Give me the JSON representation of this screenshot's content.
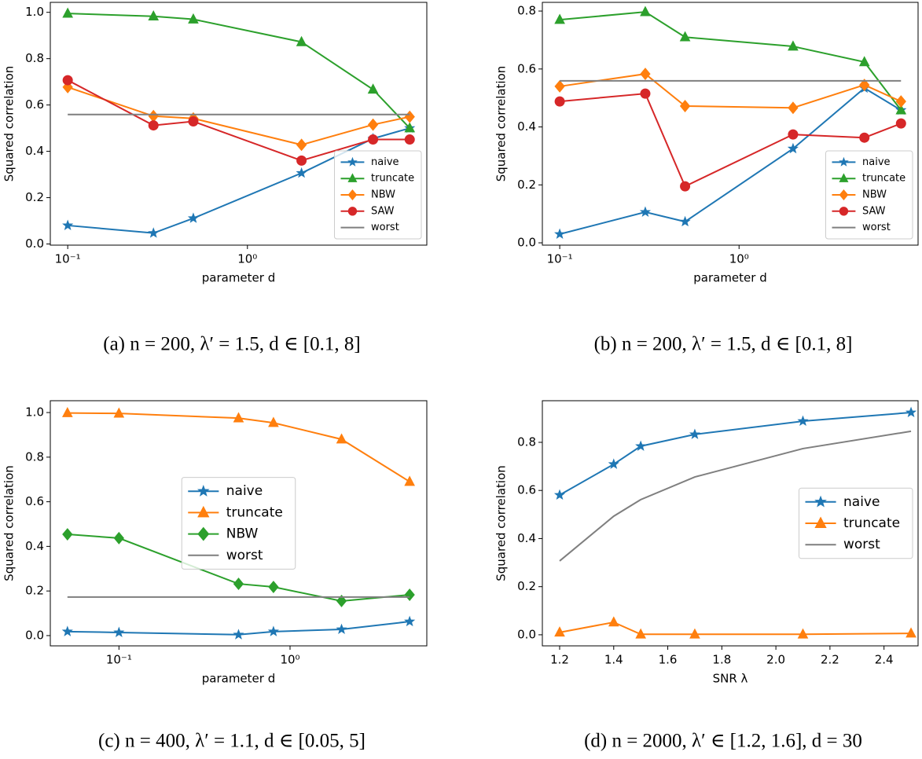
{
  "chart_data": [
    {
      "type": "line",
      "xscale": "log",
      "ylabel": "Squared correlation",
      "xlabel": "parameter d",
      "caption": "(a) n = 200, λ′ = 1.5, d ∈ [0.1, 8]",
      "x": [
        0.1,
        0.3,
        0.5,
        2,
        5,
        8
      ],
      "xlim": [
        0.08,
        9.96
      ],
      "ylim": [
        -0.005,
        1.043
      ],
      "xticks": [
        {
          "value": 0.1,
          "label": "10⁻¹"
        },
        {
          "value": 1,
          "label": "10⁰"
        }
      ],
      "yticks": [
        {
          "value": 0,
          "label": "0.0"
        },
        0.2,
        0.4,
        0.6,
        0.8,
        {
          "value": 1,
          "label": "1.0"
        }
      ],
      "legend_loc": "lower right",
      "series": [
        {
          "name": "naive",
          "color": "#1f77b4",
          "marker": "star",
          "values": [
            0.08,
            0.047,
            0.111,
            0.306,
            0.455,
            0.5
          ]
        },
        {
          "name": "truncate",
          "color": "#2ca02c",
          "marker": "triangle",
          "values": [
            0.995,
            0.983,
            0.97,
            0.872,
            0.667,
            0.5
          ]
        },
        {
          "name": "NBW",
          "color": "#ff7f0e",
          "marker": "diamond",
          "values": [
            0.677,
            0.552,
            0.542,
            0.428,
            0.515,
            0.549
          ]
        },
        {
          "name": "SAW",
          "color": "#d62728",
          "marker": "circle",
          "values": [
            0.707,
            0.512,
            0.529,
            0.36,
            0.451,
            0.451
          ]
        },
        {
          "name": "worst",
          "color": "#7f7f7f",
          "marker": "none",
          "values": [
            0.559,
            0.559,
            0.559,
            0.559,
            0.559,
            0.559
          ]
        }
      ]
    },
    {
      "type": "line",
      "xscale": "log",
      "ylabel": "Squared correlation",
      "xlabel": "parameter d",
      "caption": "(b) n = 200, λ′ = 1.5, d ∈ [0.1, 8]",
      "x": [
        0.1,
        0.3,
        0.5,
        2,
        5,
        8
      ],
      "xlim": [
        0.08,
        9.96
      ],
      "ylim": [
        -0.008,
        0.83
      ],
      "xticks": [
        {
          "value": 0.1,
          "label": "10⁻¹"
        },
        {
          "value": 1,
          "label": "10⁰"
        }
      ],
      "yticks": [
        {
          "value": 0,
          "label": "0.0"
        },
        0.2,
        0.4,
        0.6,
        0.8
      ],
      "legend_loc": "lower right",
      "series": [
        {
          "name": "naive",
          "color": "#1f77b4",
          "marker": "star",
          "values": [
            0.03,
            0.106,
            0.073,
            0.325,
            0.534,
            0.458
          ]
        },
        {
          "name": "truncate",
          "color": "#2ca02c",
          "marker": "triangle",
          "values": [
            0.77,
            0.797,
            0.71,
            0.678,
            0.624,
            0.458
          ]
        },
        {
          "name": "NBW",
          "color": "#ff7f0e",
          "marker": "diamond",
          "values": [
            0.54,
            0.583,
            0.472,
            0.466,
            0.545,
            0.488
          ]
        },
        {
          "name": "SAW",
          "color": "#d62728",
          "marker": "circle",
          "values": [
            0.488,
            0.515,
            0.195,
            0.374,
            0.363,
            0.412
          ]
        },
        {
          "name": "worst",
          "color": "#7f7f7f",
          "marker": "none",
          "values": [
            0.559,
            0.559,
            0.559,
            0.559,
            0.559,
            0.559
          ]
        }
      ]
    },
    {
      "type": "line",
      "xscale": "log",
      "ylabel": "Squared correlation",
      "xlabel": "parameter d",
      "caption": "(c) n = 400, λ′ = 1.1, d ∈ [0.05, 5]",
      "x": [
        0.05,
        0.1,
        0.5,
        0.8,
        2,
        5
      ],
      "xlim": [
        0.0397,
        6.3
      ],
      "ylim": [
        -0.046,
        1.053
      ],
      "xticks": [
        {
          "value": 0.1,
          "label": "10⁻¹"
        },
        {
          "value": 1,
          "label": "10⁰"
        }
      ],
      "yticks": [
        {
          "value": 0,
          "label": "0.0"
        },
        0.2,
        0.4,
        0.6,
        0.8,
        {
          "value": 1,
          "label": "1.0"
        }
      ],
      "legend_loc": "center",
      "series": [
        {
          "name": "naive",
          "color": "#1f77b4",
          "marker": "star",
          "values": [
            0.018,
            0.014,
            0.004,
            0.018,
            0.028,
            0.063
          ]
        },
        {
          "name": "truncate",
          "color": "#ff7f0e",
          "marker": "triangle",
          "values": [
            0.998,
            0.996,
            0.975,
            0.954,
            0.88,
            0.69
          ]
        },
        {
          "name": "NBW",
          "color": "#2ca02c",
          "marker": "diamond",
          "values": [
            0.454,
            0.437,
            0.232,
            0.218,
            0.155,
            0.183
          ]
        },
        {
          "name": "worst",
          "color": "#7f7f7f",
          "marker": "none",
          "values": [
            0.173,
            0.173,
            0.173,
            0.173,
            0.173,
            0.173
          ]
        }
      ]
    },
    {
      "type": "line",
      "xscale": "linear",
      "ylabel": "Squared correlation",
      "xlabel": "SNR λ",
      "caption": "(d) n = 2000, λ′ ∈ [1.2, 1.6], d = 30",
      "x": [
        1.2,
        1.4,
        1.5,
        1.7,
        2.1,
        2.5
      ],
      "xlim": [
        1.136,
        2.526
      ],
      "ylim": [
        -0.046,
        0.973
      ],
      "xticks": [
        1.2,
        1.4,
        1.6,
        1.8,
        {
          "value": 2,
          "label": "2.0"
        },
        2.2,
        2.4
      ],
      "yticks": [
        {
          "value": 0,
          "label": "0.0"
        },
        0.2,
        0.4,
        0.6,
        0.8
      ],
      "legend_loc": "center right",
      "series": [
        {
          "name": "naive",
          "color": "#1f77b4",
          "marker": "star",
          "values": [
            0.581,
            0.709,
            0.784,
            0.833,
            0.888,
            0.924
          ]
        },
        {
          "name": "truncate",
          "color": "#ff7f0e",
          "marker": "triangle",
          "values": [
            0.01,
            0.052,
            0.002,
            0.002,
            0.002,
            0.006
          ]
        },
        {
          "name": "worst",
          "color": "#7f7f7f",
          "marker": "none",
          "values": [
            0.307,
            0.493,
            0.562,
            0.656,
            0.774,
            0.846
          ]
        }
      ]
    }
  ]
}
